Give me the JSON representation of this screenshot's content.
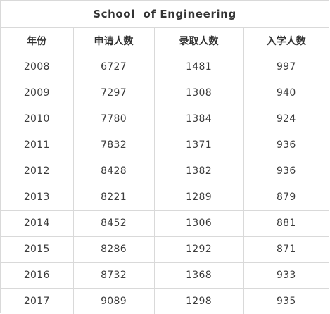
{
  "table": {
    "title": "School  of Engineering",
    "headers": [
      "年份",
      "申请人数",
      "录取人数",
      "入学人数"
    ],
    "rows": [
      [
        "2008",
        "6727",
        "1481",
        "997"
      ],
      [
        "2009",
        "7297",
        "1308",
        "940"
      ],
      [
        "2010",
        "7780",
        "1384",
        "924"
      ],
      [
        "2011",
        "7832",
        "1371",
        "936"
      ],
      [
        "2012",
        "8428",
        "1382",
        "936"
      ],
      [
        "2013",
        "8221",
        "1289",
        "879"
      ],
      [
        "2014",
        "8452",
        "1306",
        "881"
      ],
      [
        "2015",
        "8286",
        "1292",
        "871"
      ],
      [
        "2016",
        "8732",
        "1368",
        "933"
      ],
      [
        "2017",
        "9089",
        "1298",
        "935"
      ]
    ]
  }
}
